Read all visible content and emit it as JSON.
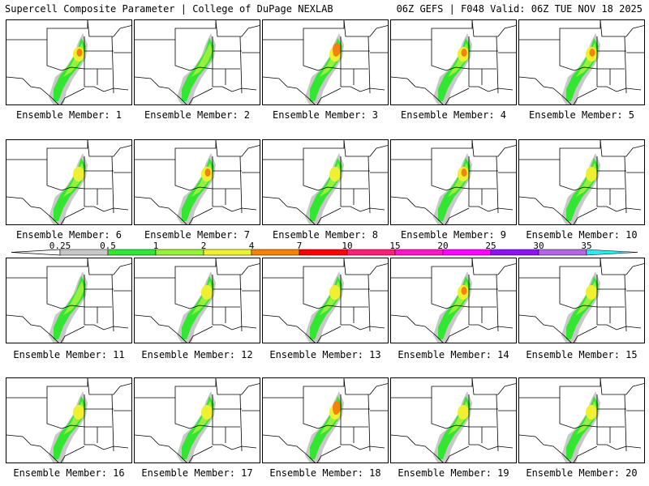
{
  "header": {
    "left": "Supercell Composite Parameter | College of DuPage NEXLAB",
    "right": "06Z GEFS | F048 Valid: 06Z TUE NOV 18 2025"
  },
  "members": [
    {
      "label": "Ensemble Member: 1"
    },
    {
      "label": "Ensemble Member: 2"
    },
    {
      "label": "Ensemble Member: 3"
    },
    {
      "label": "Ensemble Member: 4"
    },
    {
      "label": "Ensemble Member: 5"
    },
    {
      "label": "Ensemble Member: 6"
    },
    {
      "label": "Ensemble Member: 7"
    },
    {
      "label": "Ensemble Member: 8"
    },
    {
      "label": "Ensemble Member: 9"
    },
    {
      "label": "Ensemble Member: 10"
    },
    {
      "label": "Ensemble Member: 11"
    },
    {
      "label": "Ensemble Member: 12"
    },
    {
      "label": "Ensemble Member: 13"
    },
    {
      "label": "Ensemble Member: 14"
    },
    {
      "label": "Ensemble Member: 15"
    },
    {
      "label": "Ensemble Member: 16"
    },
    {
      "label": "Ensemble Member: 17"
    },
    {
      "label": "Ensemble Member: 18"
    },
    {
      "label": "Ensemble Member: 19"
    },
    {
      "label": "Ensemble Member: 20"
    }
  ],
  "legend": {
    "ticks": [
      "0.25",
      "0.5",
      "1",
      "2",
      "4",
      "7",
      "10",
      "15",
      "20",
      "25",
      "30",
      "35"
    ],
    "colors": [
      "#c8c8c8",
      "#32e632",
      "#96f03c",
      "#f0f032",
      "#f5820a",
      "#ff0000",
      "#ff1e78",
      "#ff14c8",
      "#ff00ff",
      "#8c14f0",
      "#b464e6",
      "#32e6f0"
    ]
  }
}
